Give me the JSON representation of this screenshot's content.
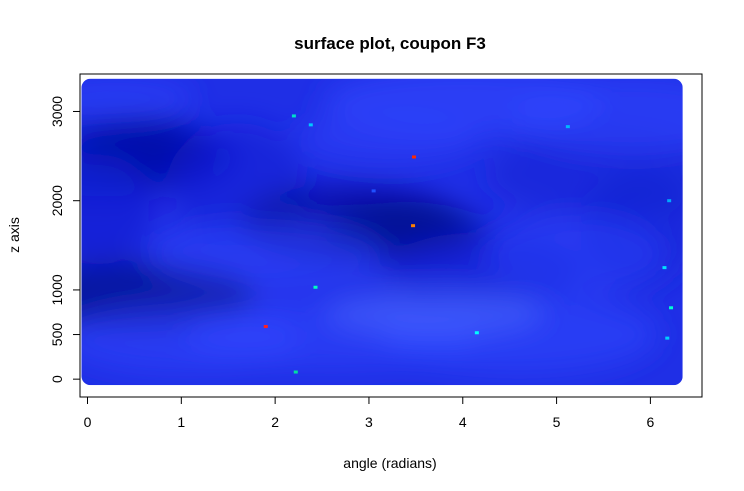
{
  "chart_data": {
    "type": "scatter",
    "title": "surface plot, coupon F3",
    "xlabel": "angle (radians)",
    "ylabel": "z axis",
    "xlim": [
      -0.08,
      6.55
    ],
    "ylim": [
      -200,
      3420
    ],
    "x_ticks": [
      0,
      1,
      2,
      3,
      4,
      5,
      6
    ],
    "x_tick_labels": [
      "0",
      "1",
      "2",
      "3",
      "4",
      "5",
      "6"
    ],
    "y_ticks": [
      0,
      500,
      1000,
      2000,
      3000
    ],
    "y_tick_labels": [
      "0",
      "500",
      "1000",
      "2000",
      "3000"
    ],
    "grid": false,
    "data_extent": {
      "x": [
        0,
        6.28
      ],
      "z": [
        0,
        3300
      ]
    },
    "base_color": "#1f2fe6",
    "color_scale": [
      "#000a8c",
      "#0f1fd2",
      "#1f2fe6",
      "#3048ff",
      "#5570ff"
    ],
    "outlier_points": [
      {
        "x": 3.48,
        "y": 2490,
        "color": "#ff2a00"
      },
      {
        "x": 3.47,
        "y": 1720,
        "color": "#ff8000"
      },
      {
        "x": 1.9,
        "y": 590,
        "color": "#ff2020"
      },
      {
        "x": 2.2,
        "y": 2950,
        "color": "#00e0c8"
      },
      {
        "x": 2.38,
        "y": 2850,
        "color": "#00c8ff"
      },
      {
        "x": 5.12,
        "y": 2830,
        "color": "#00b8ff"
      },
      {
        "x": 6.22,
        "y": 800,
        "color": "#00ffd0"
      },
      {
        "x": 6.15,
        "y": 1250,
        "color": "#00e0ff"
      },
      {
        "x": 6.18,
        "y": 460,
        "color": "#00d0ff"
      },
      {
        "x": 2.43,
        "y": 1030,
        "color": "#00ffc0"
      },
      {
        "x": 4.15,
        "y": 520,
        "color": "#00ffff"
      },
      {
        "x": 2.22,
        "y": 80,
        "color": "#00e0a0"
      },
      {
        "x": 6.2,
        "y": 2000,
        "color": "#00a8ff"
      },
      {
        "x": 3.05,
        "y": 2110,
        "color": "#2050ff"
      }
    ]
  }
}
